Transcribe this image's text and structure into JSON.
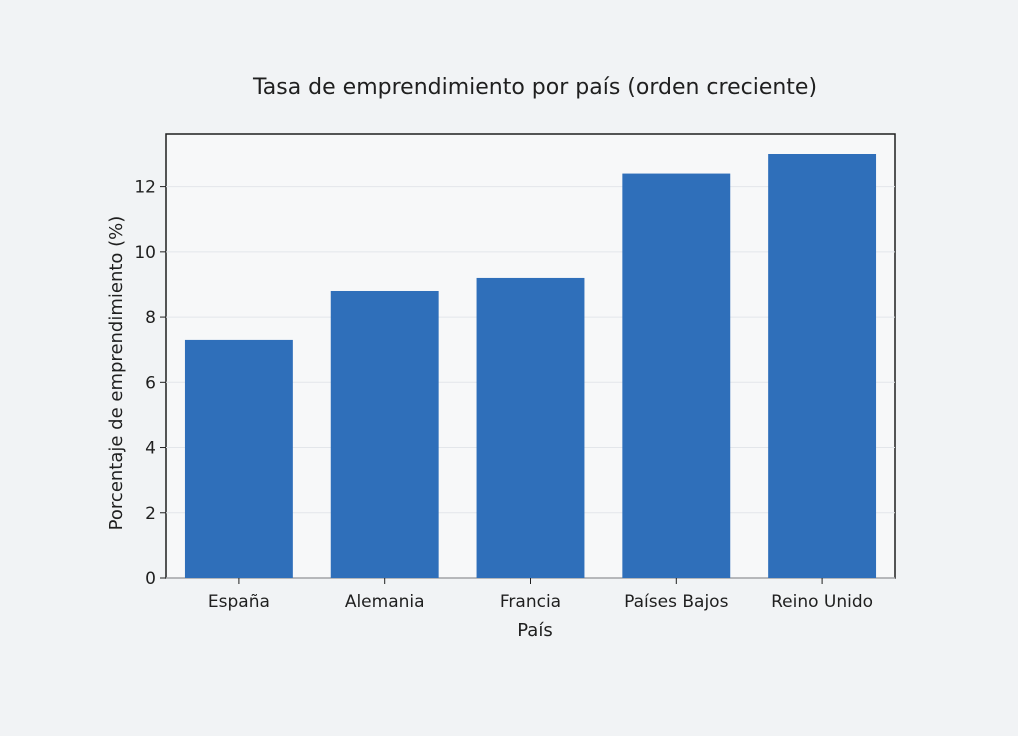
{
  "chart_data": {
    "type": "bar",
    "title": "Tasa de emprendimiento por país (orden creciente)",
    "xlabel": "País",
    "ylabel": "Porcentaje de emprendimiento (%)",
    "categories": [
      "España",
      "Alemania",
      "Francia",
      "Países Bajos",
      "Reino Unido"
    ],
    "values": [
      7.3,
      8.8,
      9.2,
      12.4,
      13.0
    ],
    "ylim": [
      0,
      13.0
    ],
    "yticks": [
      0,
      2,
      4,
      6,
      8,
      10,
      12
    ],
    "grid": true,
    "colors": {
      "bar": "#2f6fba",
      "background": "#f1f3f5",
      "plot_background": "#f7f8f9",
      "grid": "#e3e6ea",
      "axis": "#1f1f1f"
    }
  }
}
